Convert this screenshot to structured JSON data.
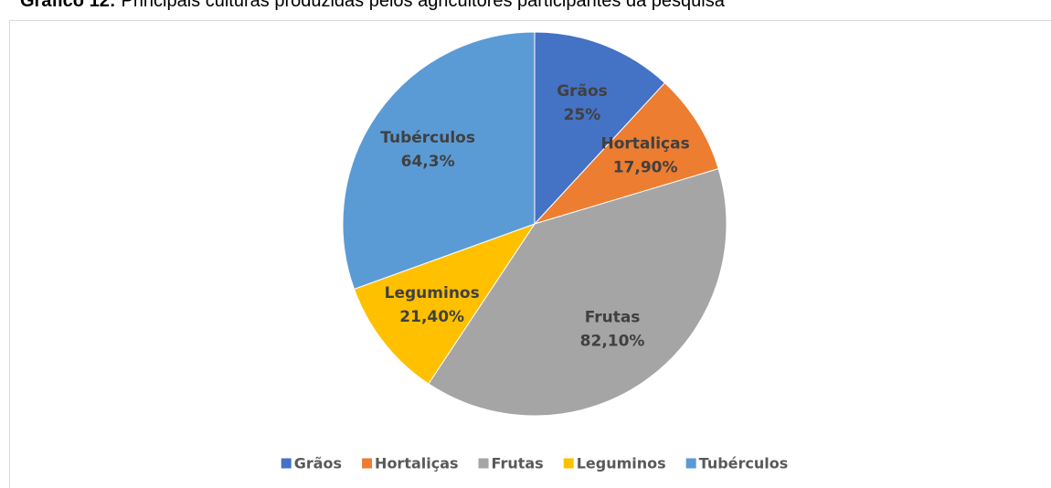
{
  "chart_data": {
    "type": "pie",
    "title_number": "Gráfico 12:",
    "title": "Principais culturas produzidas pelos agricultores participantes da pesquisa",
    "categories": [
      "Grãos",
      "Hortaliças",
      "Frutas",
      "Leguminos",
      "Tubérculos"
    ],
    "values": [
      25,
      17.9,
      82.1,
      21.4,
      64.3
    ],
    "value_labels": [
      "25%",
      "17,90%",
      "82,10%",
      "21,40%",
      "64,3%"
    ],
    "colors": [
      "#4472c4",
      "#ed7d31",
      "#a5a5a5",
      "#ffc000",
      "#5b9bd5"
    ],
    "legend": "bottom"
  }
}
